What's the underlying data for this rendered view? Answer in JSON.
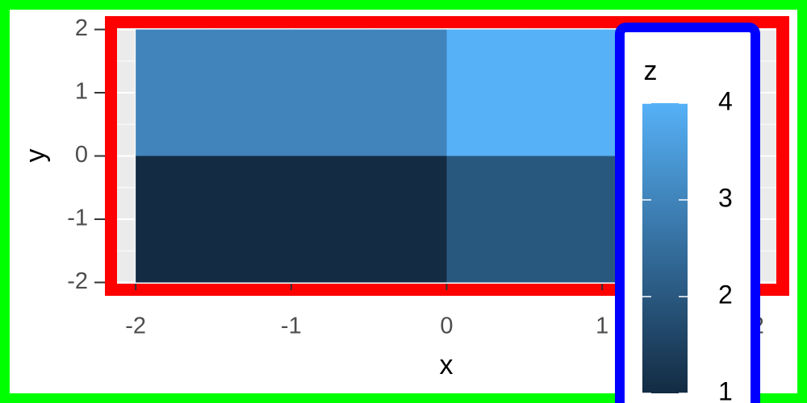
{
  "chart_data": {
    "type": "heatmap",
    "x_label": "x",
    "y_label": "y",
    "x": [
      -1,
      1,
      -1,
      1
    ],
    "y": [
      1,
      1,
      -1,
      -1
    ],
    "z": [
      3,
      4,
      1,
      2
    ],
    "tile_width": 2,
    "tile_height": 2,
    "xlim": [
      -2.12,
      2.12
    ],
    "ylim": [
      -2.02,
      2.02
    ],
    "xticks": [
      -2,
      -1,
      0,
      1,
      2
    ],
    "yticks": [
      -2,
      -1,
      0,
      1,
      2
    ],
    "grid": true,
    "color_low": "#132B43",
    "color_high": "#56B1F7",
    "legend": {
      "title": "z",
      "position": "right",
      "zlim": [
        1,
        4
      ],
      "breaks": [
        1,
        2,
        3,
        4
      ]
    }
  }
}
